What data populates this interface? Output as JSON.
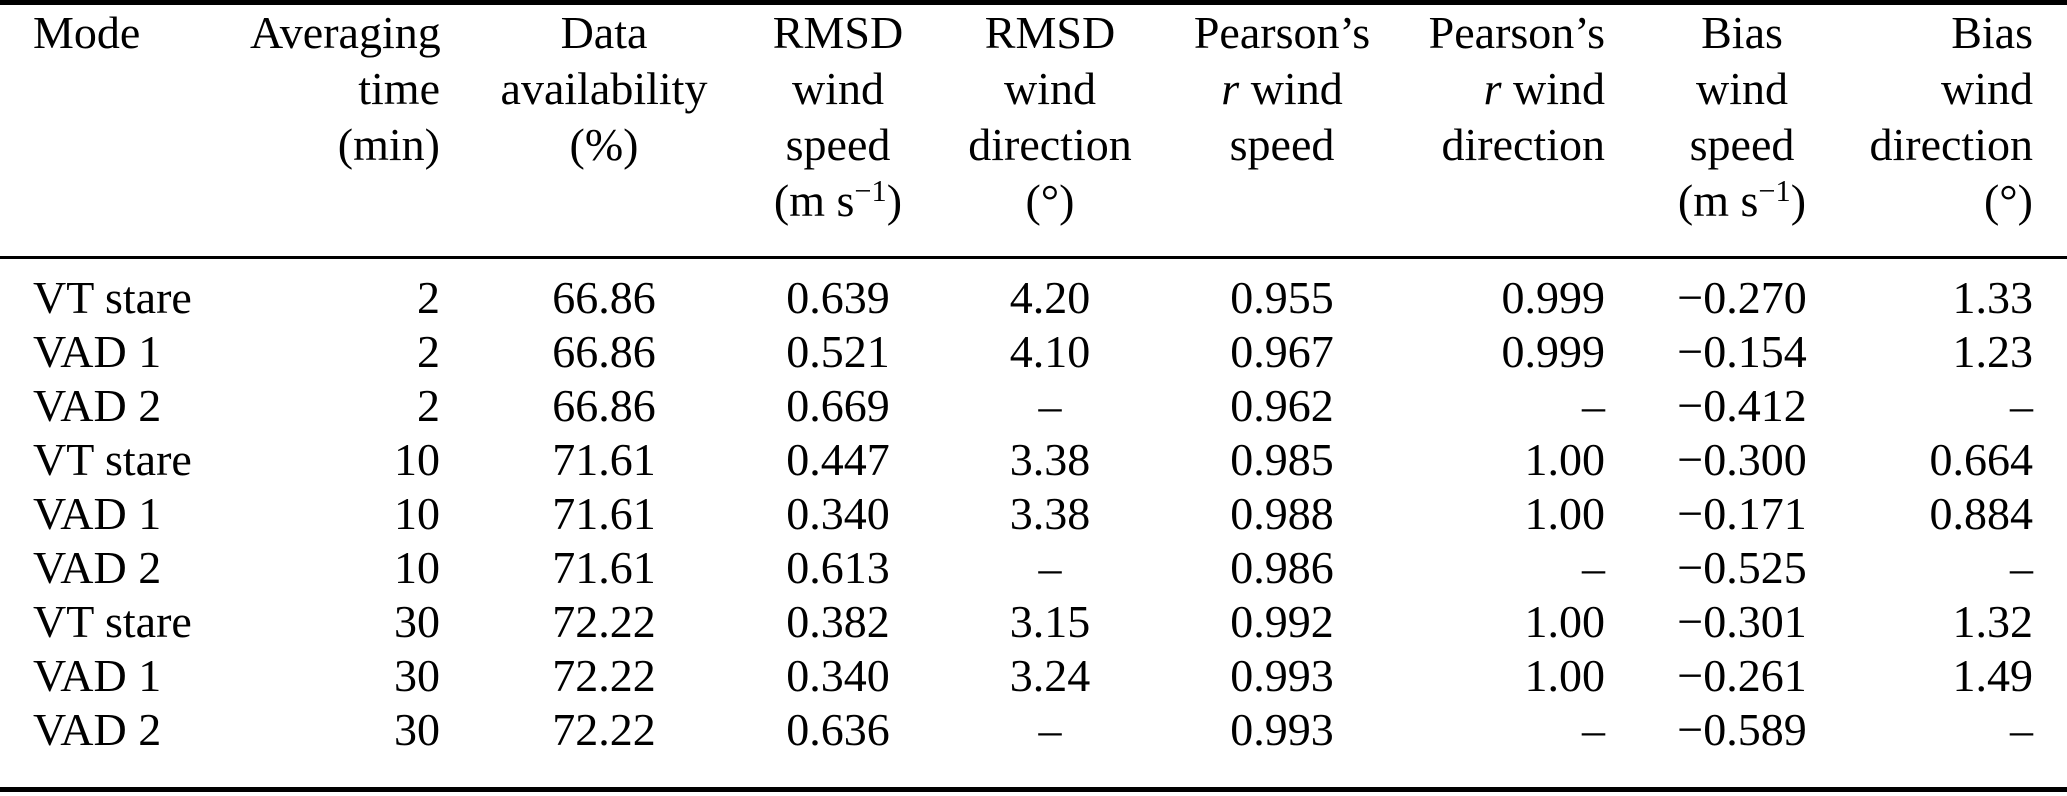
{
  "table": {
    "description": "Lidar wind retrieval comparison statistics table",
    "columns": [
      {
        "id": "mode",
        "align": "left",
        "header": [
          [
            {
              "text": "Mode"
            }
          ]
        ]
      },
      {
        "id": "averaging-time",
        "align": "right",
        "header": [
          [
            {
              "text": "Averaging"
            }
          ],
          [
            {
              "text": "time"
            }
          ],
          [
            {
              "text": "(min)"
            }
          ]
        ]
      },
      {
        "id": "data-availability",
        "align": "center",
        "header": [
          [
            {
              "text": "Data"
            }
          ],
          [
            {
              "text": "availability"
            }
          ],
          [
            {
              "text": "(%)"
            }
          ]
        ]
      },
      {
        "id": "rmsd-wind-speed",
        "align": "center",
        "header": [
          [
            {
              "text": "RMSD"
            }
          ],
          [
            {
              "text": "wind"
            }
          ],
          [
            {
              "text": "speed"
            }
          ],
          [
            {
              "text": "(m s"
            },
            {
              "text": "−1",
              "style": "sup"
            },
            {
              "text": ")"
            }
          ]
        ]
      },
      {
        "id": "rmsd-wind-direction",
        "align": "center",
        "header": [
          [
            {
              "text": "RMSD"
            }
          ],
          [
            {
              "text": "wind"
            }
          ],
          [
            {
              "text": "direction"
            }
          ],
          [
            {
              "text": "(°)"
            }
          ]
        ]
      },
      {
        "id": "pearsons-r-wind-speed",
        "align": "center",
        "header": [
          [
            {
              "text": "Pearson’s"
            }
          ],
          [
            {
              "text": "r",
              "style": "italic"
            },
            {
              "text": " wind"
            }
          ],
          [
            {
              "text": "speed"
            }
          ]
        ]
      },
      {
        "id": "pearsons-r-wind-direction",
        "align": "right",
        "header": [
          [
            {
              "text": "Pearson’s"
            }
          ],
          [
            {
              "text": "r",
              "style": "italic"
            },
            {
              "text": " wind"
            }
          ],
          [
            {
              "text": "direction"
            }
          ]
        ]
      },
      {
        "id": "bias-wind-speed",
        "align": "center",
        "header": [
          [
            {
              "text": "Bias"
            }
          ],
          [
            {
              "text": "wind"
            }
          ],
          [
            {
              "text": "speed"
            }
          ],
          [
            {
              "text": "(m s"
            },
            {
              "text": "−1",
              "style": "sup"
            },
            {
              "text": ")"
            }
          ]
        ]
      },
      {
        "id": "bias-wind-direction",
        "align": "right",
        "header": [
          [
            {
              "text": "Bias"
            }
          ],
          [
            {
              "text": "wind"
            }
          ],
          [
            {
              "text": "direction"
            }
          ],
          [
            {
              "text": "(°)"
            }
          ]
        ]
      }
    ],
    "rows": [
      [
        "VT stare",
        "2",
        "66.86",
        "0.639",
        "4.20",
        "0.955",
        "0.999",
        "−0.270",
        "1.33"
      ],
      [
        "VAD 1",
        "2",
        "66.86",
        "0.521",
        "4.10",
        "0.967",
        "0.999",
        "−0.154",
        "1.23"
      ],
      [
        "VAD 2",
        "2",
        "66.86",
        "0.669",
        "–",
        "0.962",
        "–",
        "−0.412",
        "–"
      ],
      [
        "VT stare",
        "10",
        "71.61",
        "0.447",
        "3.38",
        "0.985",
        "1.00",
        "−0.300",
        "0.664"
      ],
      [
        "VAD 1",
        "10",
        "71.61",
        "0.340",
        "3.38",
        "0.988",
        "1.00",
        "−0.171",
        "0.884"
      ],
      [
        "VAD 2",
        "10",
        "71.61",
        "0.613",
        "–",
        "0.986",
        "–",
        "−0.525",
        "–"
      ],
      [
        "VT stare",
        "30",
        "72.22",
        "0.382",
        "3.15",
        "0.992",
        "1.00",
        "−0.301",
        "1.32"
      ],
      [
        "VAD 1",
        "30",
        "72.22",
        "0.340",
        "3.24",
        "0.993",
        "1.00",
        "−0.261",
        "1.49"
      ],
      [
        "VAD 2",
        "30",
        "72.22",
        "0.636",
        "–",
        "0.993",
        "–",
        "−0.589",
        "–"
      ]
    ],
    "colors": {
      "text": "#000000",
      "background": "#ffffff",
      "rule": "#000000"
    }
  }
}
